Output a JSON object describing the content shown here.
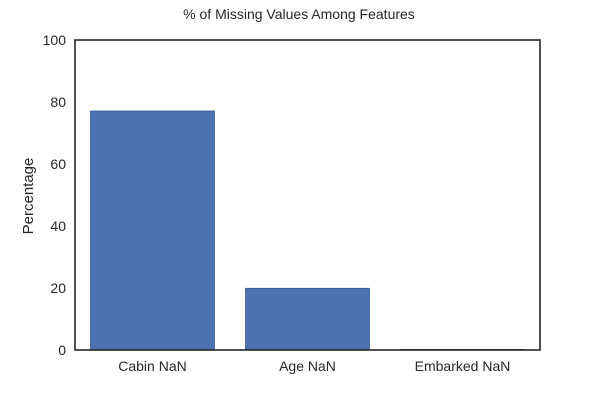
{
  "chart_data": {
    "type": "bar",
    "title": "% of Missing Values Among Features",
    "xlabel": "",
    "ylabel": "Percentage",
    "categories": [
      "Cabin NaN",
      "Age NaN",
      "Embarked NaN"
    ],
    "values": [
      77.1,
      19.9,
      0.2
    ],
    "ylim": [
      0,
      100
    ],
    "yticks": [
      0,
      20,
      40,
      60,
      80,
      100
    ],
    "grid": false,
    "legend": "none",
    "bar_color": "#4c72b0",
    "bar_edge_color": "#3a5a8e",
    "frame_color": "#262626"
  }
}
